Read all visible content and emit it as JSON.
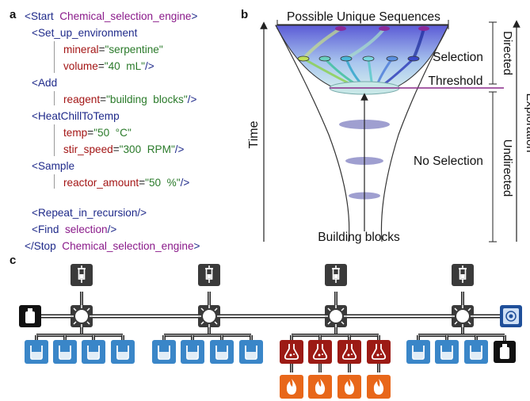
{
  "panels": {
    "a": "a",
    "b": "b",
    "c": "c"
  },
  "code": {
    "line1": {
      "tag": "<Start",
      "name": "Chemical_selection_engine",
      "end": ">"
    },
    "line2": {
      "tag": "<Set_up_environment"
    },
    "line3": {
      "attr": "mineral",
      "eq": "=",
      "value": "\"serpentine\""
    },
    "line4": {
      "attr": "volume",
      "eq": "=",
      "value": "\"40  mL\"",
      "end": "/>"
    },
    "line5": {
      "tag": "<Add"
    },
    "line6": {
      "attr": "reagent",
      "eq": "=",
      "value": "\"building  blocks\"",
      "end": "/>"
    },
    "line7": {
      "tag": "<HeatChillToTemp"
    },
    "line8": {
      "attr": "temp",
      "eq": "=",
      "value": "\"50  °C\""
    },
    "line9": {
      "attr": "stir_speed",
      "eq": "=",
      "value": "\"300  RPM\"",
      "end": "/>"
    },
    "line10": {
      "tag": "<Sample"
    },
    "line11": {
      "attr": "reactor_amount",
      "eq": "=",
      "value": "\"50  %\"",
      "end": "/>"
    },
    "line12": {
      "tag": "<Repeat_in_recursion/>"
    },
    "line13": {
      "tag": "<Find",
      "name": "selection",
      "end": "/>"
    },
    "line14": {
      "tag": "</Stop",
      "name": "Chemical_selection_engine",
      "end": ">"
    }
  },
  "funnel": {
    "top_label": "Possible Unique Sequences",
    "selection": "Selection",
    "threshold": "Threshold",
    "no_selection": "No Selection",
    "building_blocks": "Building blocks",
    "time": "Time",
    "directed": "Directed",
    "undirected": "Undirected",
    "exploration": "Exploration",
    "colors": {
      "funnel_top": "#6a6ad8",
      "funnel_bottom": "#cfe8ee",
      "threshold_line": "#8a2a8a",
      "ellipse": "#8e8ec8"
    }
  },
  "platform": {
    "colors": {
      "reactor": "#3a86c8",
      "flask": "#9c1a14",
      "heater": "#e8671a",
      "pump": "#3a3a3a",
      "bottle": "#111111",
      "camera": "#1f4f9a"
    },
    "icons": {
      "pump": "syringe-icon",
      "hub": "valve-icon",
      "reactor": "beaker-icon",
      "flask": "flask-icon",
      "heater": "flame-icon",
      "bottle": "bottle-icon",
      "camera": "camera-icon"
    }
  }
}
